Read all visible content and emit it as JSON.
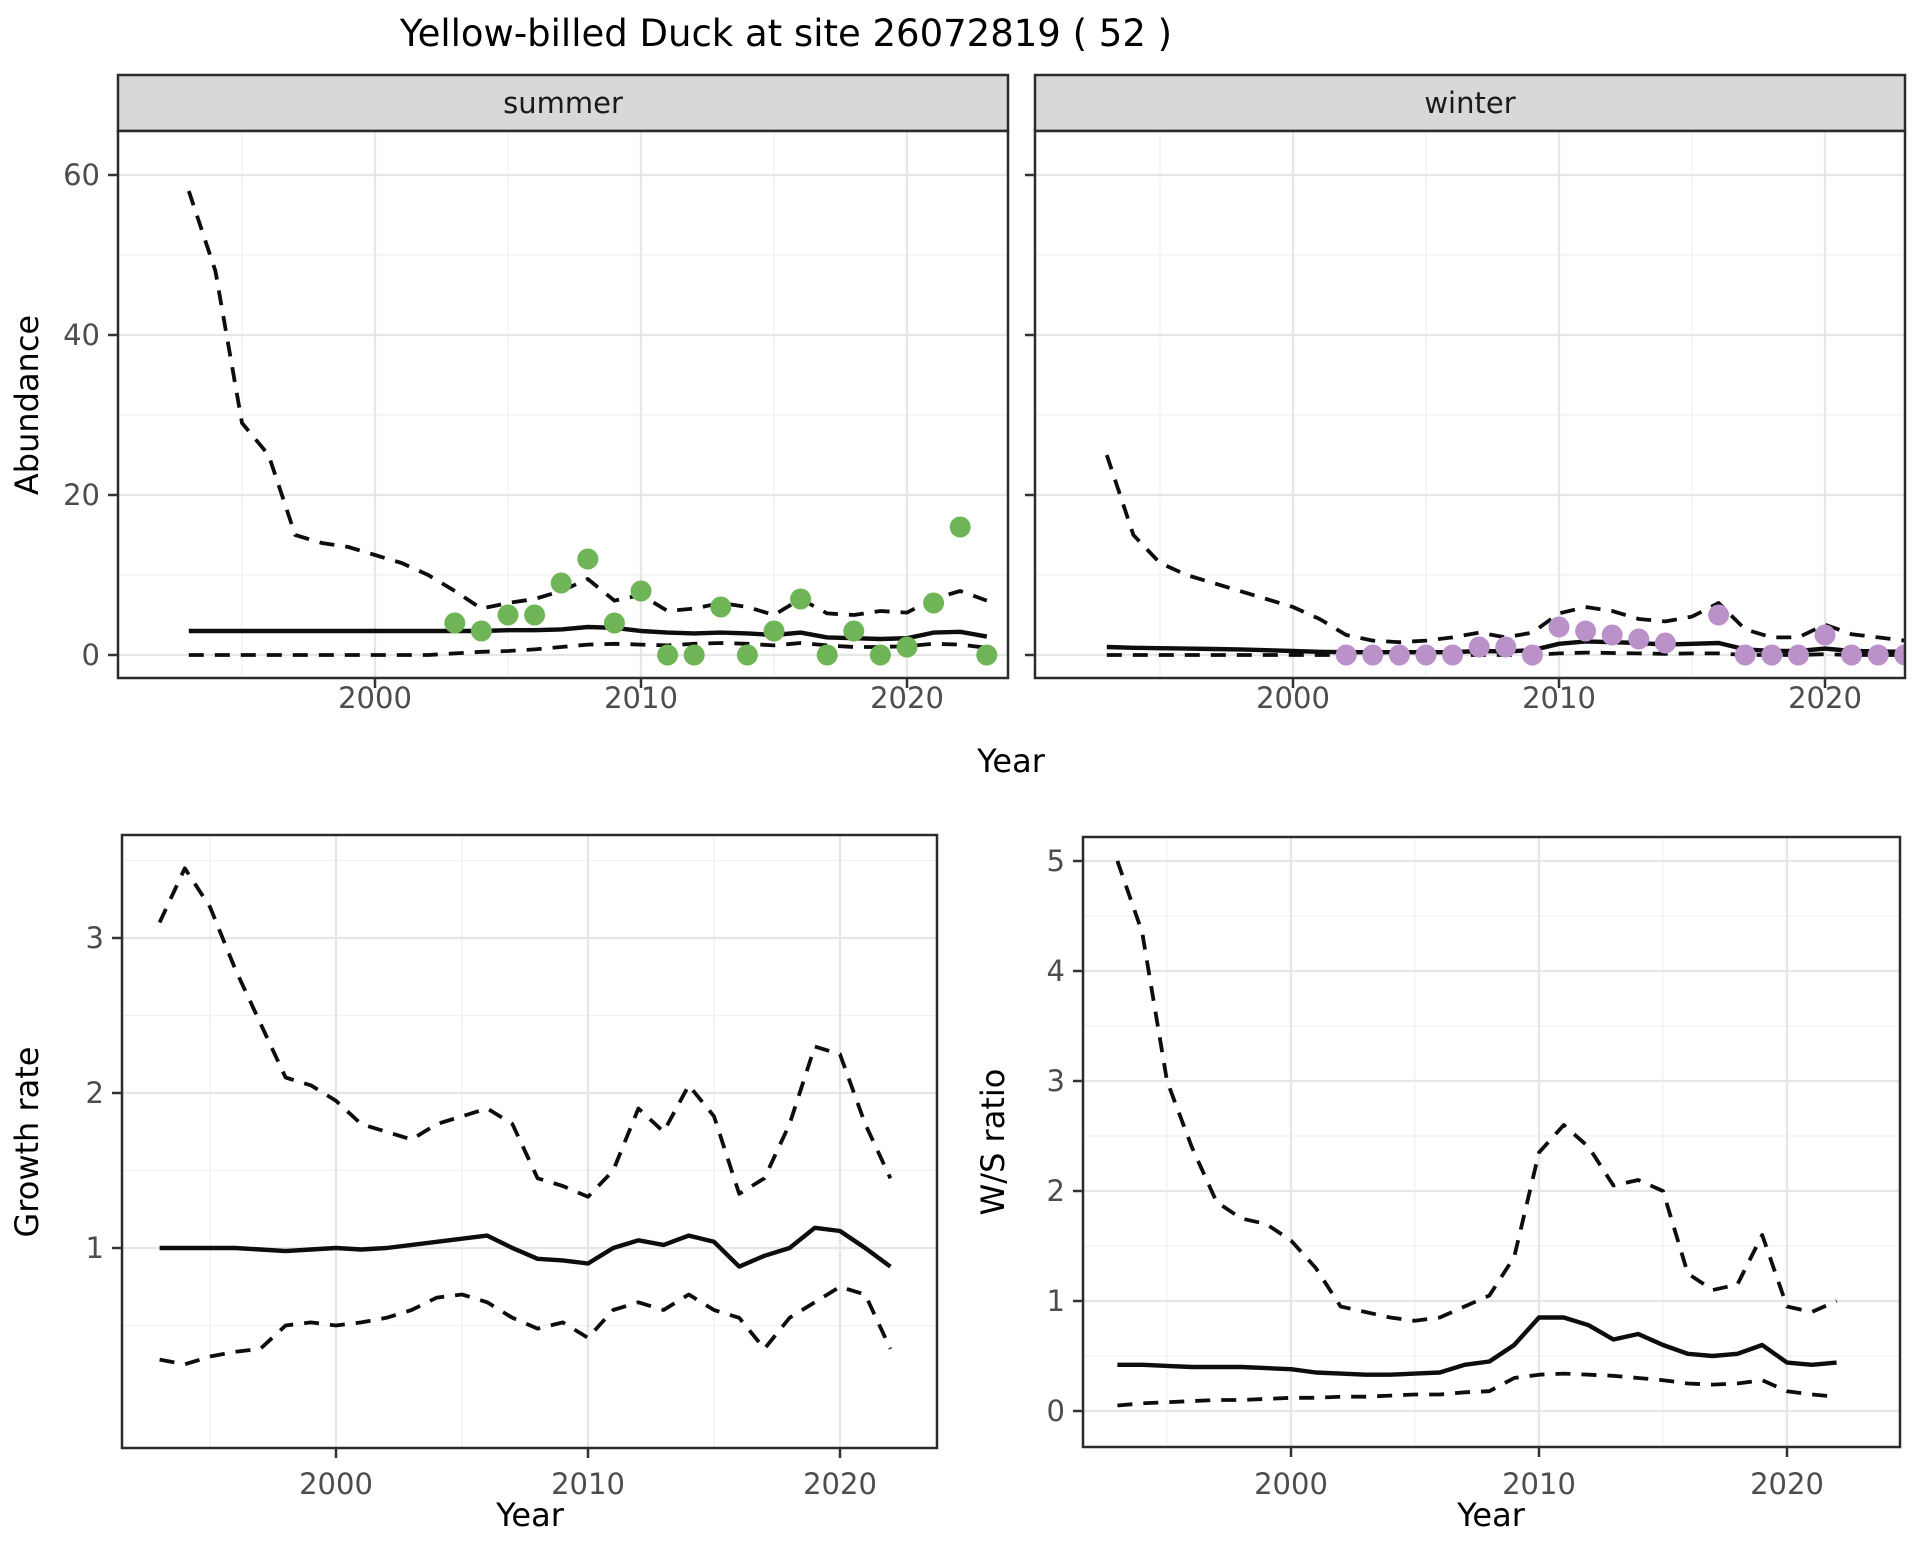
{
  "title": "Yellow-billed Duck at site 26072819 ( 52 )",
  "axis_titles": {
    "x": "Year",
    "abundance": "Abundance",
    "growth": "Growth rate",
    "ws": "W/S ratio"
  },
  "facets": {
    "summer_label": "summer",
    "winter_label": "winter"
  },
  "colors": {
    "summer_point": "#6fb457",
    "winter_point": "#bb91c9",
    "line": "#0d0d0d",
    "strip_bg": "#d8d8d8",
    "panel_border": "#2b2b2b",
    "tick_text": "#4d4d4d"
  },
  "chart_data": [
    {
      "id": "abundance-summer",
      "type": "line",
      "facet": "summer",
      "ylabel": "Abundance",
      "xlabel": "Year",
      "x_ticks": [
        2000,
        2010,
        2020
      ],
      "y_ticks": [
        0,
        20,
        40,
        60
      ],
      "ylim": [
        -2.5,
        65.5
      ],
      "xlim": [
        1990.3,
        2023.8
      ],
      "years": [
        1993,
        1994,
        1995,
        1996,
        1997,
        1998,
        1999,
        2000,
        2001,
        2002,
        2003,
        2004,
        2005,
        2006,
        2007,
        2008,
        2009,
        2010,
        2011,
        2012,
        2013,
        2014,
        2015,
        2016,
        2017,
        2018,
        2019,
        2020,
        2021,
        2022,
        2023
      ],
      "series": [
        {
          "name": "lower_ci",
          "style": "dashed",
          "values": [
            0,
            0,
            0,
            0,
            0,
            0,
            0,
            0,
            0,
            0,
            0.2,
            0.4,
            0.5,
            0.7,
            1,
            1.3,
            1.4,
            1.3,
            1.2,
            1.4,
            1.5,
            1.4,
            1.2,
            1.5,
            1.2,
            1,
            1,
            1.1,
            1.4,
            1.3,
            0.9
          ]
        },
        {
          "name": "median",
          "style": "solid",
          "values": [
            3,
            3,
            3,
            3,
            3,
            3,
            3,
            3,
            3,
            3,
            3,
            3,
            3.1,
            3.1,
            3.2,
            3.5,
            3.4,
            3,
            2.8,
            2.7,
            2.8,
            2.7,
            2.5,
            2.8,
            2.2,
            2.1,
            2,
            2.1,
            2.8,
            2.9,
            2.3
          ]
        },
        {
          "name": "upper_ci",
          "style": "dashed",
          "values": [
            58,
            48,
            29,
            25,
            15,
            14,
            13.5,
            12.5,
            11.5,
            10,
            8,
            5.8,
            6.5,
            7,
            8,
            9.5,
            6.8,
            7.5,
            5.5,
            5.8,
            6.5,
            6,
            5,
            7,
            5.2,
            5,
            5.5,
            5.3,
            7,
            8,
            6.8
          ]
        }
      ],
      "points": {
        "name": "summer-observations",
        "color": "#6fb457",
        "years": [
          2003,
          2004,
          2005,
          2006,
          2007,
          2008,
          2009,
          2010,
          2011,
          2012,
          2013,
          2014,
          2015,
          2016,
          2017,
          2018,
          2019,
          2020,
          2021,
          2022,
          2023
        ],
        "values": [
          4,
          3,
          5,
          5,
          9,
          12,
          4,
          8,
          0,
          0,
          6,
          0,
          3,
          7,
          0,
          3,
          0,
          1,
          6.5,
          16,
          0
        ]
      }
    },
    {
      "id": "abundance-winter",
      "type": "line",
      "facet": "winter",
      "ylabel": "Abundance",
      "xlabel": "Year",
      "x_ticks": [
        2000,
        2010,
        2020
      ],
      "y_ticks": [
        0,
        20,
        40,
        60
      ],
      "ylim": [
        -2.5,
        65.5
      ],
      "xlim": [
        1990.3,
        2023.8
      ],
      "years": [
        1993,
        1994,
        1995,
        1996,
        1997,
        1998,
        1999,
        2000,
        2001,
        2002,
        2003,
        2004,
        2005,
        2006,
        2007,
        2008,
        2009,
        2010,
        2011,
        2012,
        2013,
        2014,
        2015,
        2016,
        2017,
        2018,
        2019,
        2020,
        2021,
        2022,
        2023
      ],
      "series": [
        {
          "name": "lower_ci",
          "style": "dashed",
          "values": [
            0,
            0,
            0,
            0,
            0,
            0,
            0,
            0,
            0,
            0,
            0,
            0,
            0,
            0,
            0,
            0,
            0,
            0.2,
            0.3,
            0.25,
            0.2,
            0.15,
            0.2,
            0.2,
            0,
            0,
            0,
            0.1,
            0,
            0,
            0
          ]
        },
        {
          "name": "median",
          "style": "solid",
          "values": [
            1,
            0.9,
            0.85,
            0.8,
            0.75,
            0.7,
            0.6,
            0.5,
            0.4,
            0.35,
            0.35,
            0.35,
            0.35,
            0.35,
            0.5,
            0.45,
            0.6,
            1.4,
            1.7,
            1.6,
            1.5,
            1.3,
            1.4,
            1.5,
            0.7,
            0.5,
            0.5,
            0.8,
            0.5,
            0.45,
            0.4
          ]
        },
        {
          "name": "upper_ci",
          "style": "dashed",
          "values": [
            25,
            15,
            11.5,
            10,
            9,
            8,
            7,
            6,
            4.5,
            2.5,
            1.8,
            1.6,
            1.8,
            2.2,
            2.8,
            2.2,
            2.8,
            5.2,
            6,
            5.5,
            4.5,
            4.2,
            4.8,
            6.5,
            3.2,
            2.2,
            2.2,
            3.8,
            2.6,
            2.2,
            1.8
          ]
        }
      ],
      "points": {
        "name": "winter-observations",
        "color": "#bb91c9",
        "years": [
          2002,
          2003,
          2004,
          2005,
          2006,
          2007,
          2008,
          2009,
          2010,
          2011,
          2012,
          2013,
          2014,
          2016,
          2017,
          2018,
          2019,
          2020,
          2021,
          2022,
          2023
        ],
        "values": [
          0,
          0,
          0,
          0,
          0,
          1,
          1,
          0,
          3.5,
          3,
          2.5,
          2,
          1.5,
          5,
          0,
          0,
          0,
          2.5,
          0,
          0,
          0
        ]
      }
    },
    {
      "id": "growth-rate",
      "type": "line",
      "facet": null,
      "ylabel": "Growth rate",
      "xlabel": "Year",
      "x_ticks": [
        2000,
        2010,
        2020
      ],
      "y_ticks": [
        1,
        2,
        3
      ],
      "ylim": [
        -0.29,
        3.66
      ],
      "xlim": [
        1991.5,
        2023.8
      ],
      "years": [
        1993,
        1994,
        1995,
        1996,
        1997,
        1998,
        1999,
        2000,
        2001,
        2002,
        2003,
        2004,
        2005,
        2006,
        2007,
        2008,
        2009,
        2010,
        2011,
        2012,
        2013,
        2014,
        2015,
        2016,
        2017,
        2018,
        2019,
        2020,
        2021,
        2022
      ],
      "series": [
        {
          "name": "lower_ci",
          "style": "dashed",
          "values": [
            0.28,
            0.25,
            0.3,
            0.33,
            0.35,
            0.5,
            0.52,
            0.5,
            0.52,
            0.55,
            0.6,
            0.68,
            0.7,
            0.65,
            0.55,
            0.48,
            0.52,
            0.42,
            0.6,
            0.65,
            0.6,
            0.7,
            0.6,
            0.55,
            0.35,
            0.55,
            0.65,
            0.75,
            0.7,
            0.35
          ]
        },
        {
          "name": "median",
          "style": "solid",
          "values": [
            1,
            1,
            1,
            1,
            0.99,
            0.98,
            0.99,
            1,
            0.99,
            1,
            1.02,
            1.04,
            1.06,
            1.08,
            1,
            0.93,
            0.92,
            0.9,
            1,
            1.05,
            1.02,
            1.08,
            1.04,
            0.88,
            0.95,
            1,
            1.13,
            1.11,
            1,
            0.88
          ]
        },
        {
          "name": "upper_ci",
          "style": "dashed",
          "values": [
            3.1,
            3.45,
            3.2,
            2.8,
            2.45,
            2.1,
            2.05,
            1.95,
            1.8,
            1.75,
            1.7,
            1.8,
            1.85,
            1.9,
            1.8,
            1.45,
            1.4,
            1.33,
            1.5,
            1.9,
            1.75,
            2.05,
            1.85,
            1.35,
            1.45,
            1.8,
            2.3,
            2.25,
            1.8,
            1.45
          ]
        }
      ],
      "points": null
    },
    {
      "id": "ws-ratio",
      "type": "line",
      "facet": null,
      "ylabel": "W/S ratio",
      "xlabel": "Year",
      "x_ticks": [
        2000,
        2010,
        2020
      ],
      "y_ticks": [
        0,
        1,
        2,
        3,
        4,
        5
      ],
      "ylim": [
        -0.33,
        5.22
      ],
      "xlim": [
        1991.6,
        2024.6
      ],
      "years": [
        1993,
        1994,
        1995,
        1996,
        1997,
        1998,
        1999,
        2000,
        2001,
        2002,
        2003,
        2004,
        2005,
        2006,
        2007,
        2008,
        2009,
        2010,
        2011,
        2012,
        2013,
        2014,
        2015,
        2016,
        2017,
        2018,
        2019,
        2020,
        2021,
        2022
      ],
      "series": [
        {
          "name": "lower_ci",
          "style": "dashed",
          "values": [
            0.05,
            0.07,
            0.08,
            0.09,
            0.1,
            0.1,
            0.11,
            0.12,
            0.12,
            0.13,
            0.13,
            0.14,
            0.15,
            0.15,
            0.17,
            0.18,
            0.3,
            0.33,
            0.34,
            0.33,
            0.32,
            0.3,
            0.28,
            0.25,
            0.24,
            0.25,
            0.28,
            0.18,
            0.15,
            0.13
          ]
        },
        {
          "name": "median",
          "style": "solid",
          "values": [
            0.42,
            0.42,
            0.41,
            0.4,
            0.4,
            0.4,
            0.39,
            0.38,
            0.35,
            0.34,
            0.33,
            0.33,
            0.34,
            0.35,
            0.42,
            0.45,
            0.6,
            0.85,
            0.85,
            0.78,
            0.65,
            0.7,
            0.6,
            0.52,
            0.5,
            0.52,
            0.6,
            0.44,
            0.42,
            0.44
          ]
        },
        {
          "name": "upper_ci",
          "style": "dashed",
          "values": [
            5,
            4.35,
            3,
            2.4,
            1.9,
            1.75,
            1.7,
            1.55,
            1.3,
            0.95,
            0.9,
            0.85,
            0.82,
            0.85,
            0.95,
            1.05,
            1.4,
            2.35,
            2.6,
            2.4,
            2.05,
            2.1,
            2,
            1.25,
            1.1,
            1.15,
            1.6,
            0.95,
            0.9,
            1
          ]
        }
      ],
      "points": null
    }
  ]
}
